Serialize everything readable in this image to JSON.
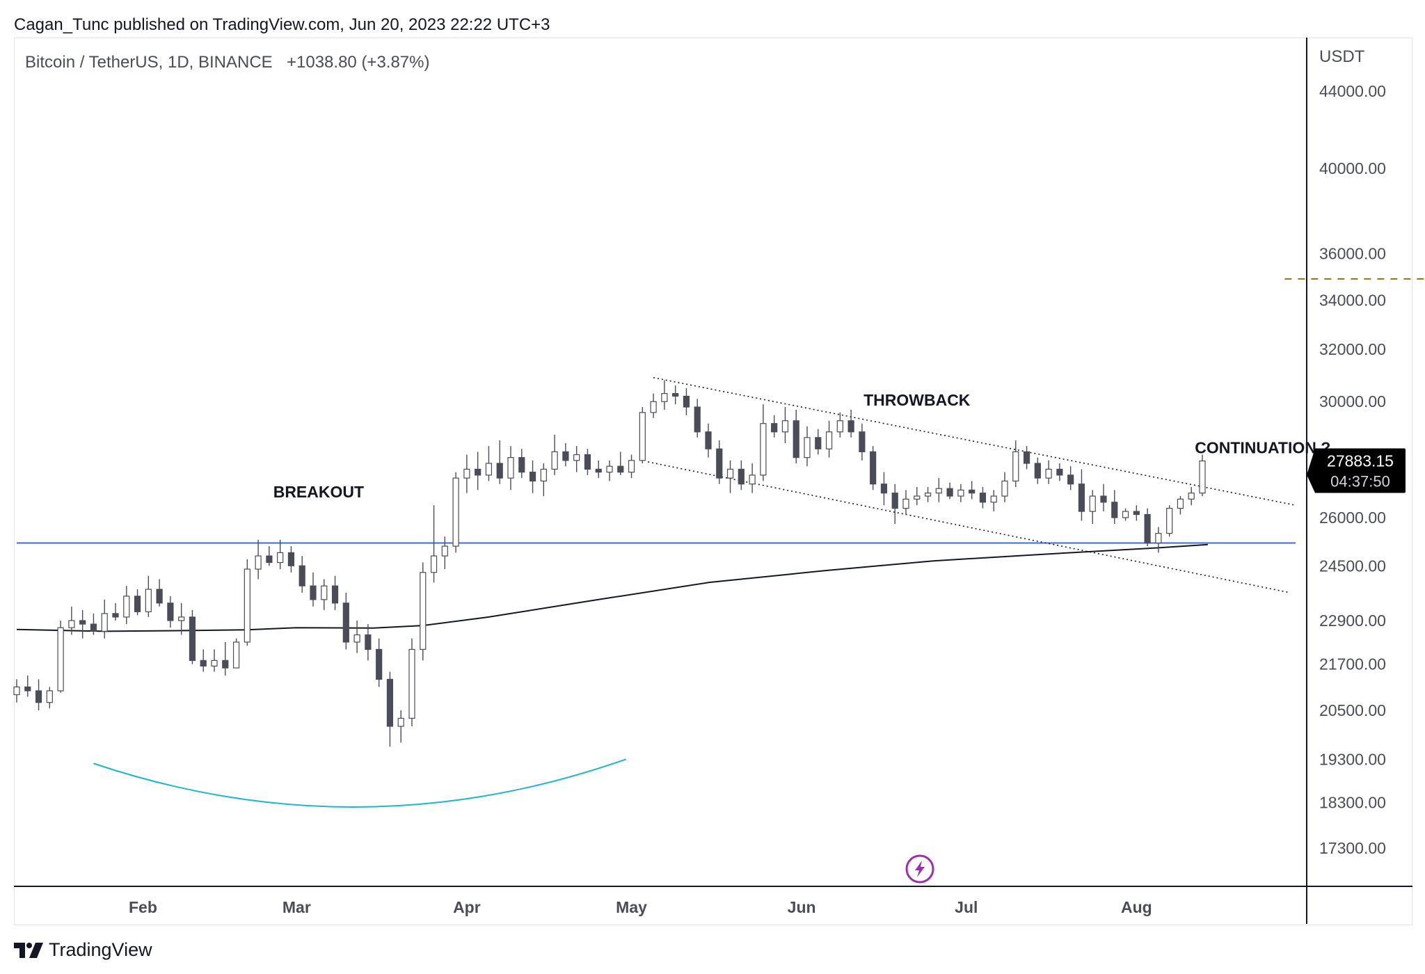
{
  "header": {
    "publish_note": "Cagan_Tunc published on TradingView.com, Jun 20, 2023 22:22 UTC+3"
  },
  "footer": {
    "brand": "TradingView"
  },
  "colors": {
    "candle_down": "#4a4c57",
    "candle_up": "#ffffff",
    "candle_outline": "#4a4c57",
    "support_line": "#3f6bd8",
    "moving_average": "#131722",
    "rounded_bottom_arc": "#1fb5c9",
    "target_dashed_line": "#7c7a1e",
    "price_tag_bg": "#000000",
    "price_tag_text": "#ffffff",
    "lightning_icon": "#9b2fae"
  },
  "chart_data": {
    "type": "candlestick",
    "symbol_line": "Bitcoin / TetherUS, 1D, BINANCE",
    "change": "+1038.80 (+3.87%)",
    "currency": "USDT",
    "scale": "log",
    "y_range": [
      16500,
      47000
    ],
    "y_ticks": [
      {
        "label": "44000.00",
        "value": 44000
      },
      {
        "label": "40000.00",
        "value": 40000
      },
      {
        "label": "36000.00",
        "value": 36000
      },
      {
        "label": "34000.00",
        "value": 34000
      },
      {
        "label": "32000.00",
        "value": 32000
      },
      {
        "label": "30000.00",
        "value": 30000
      },
      {
        "label": "26000.00",
        "value": 26000
      },
      {
        "label": "24500.00",
        "value": 24500
      },
      {
        "label": "22900.00",
        "value": 22900
      },
      {
        "label": "21700.00",
        "value": 21700
      },
      {
        "label": "20500.00",
        "value": 20500
      },
      {
        "label": "19300.00",
        "value": 19300
      },
      {
        "label": "18300.00",
        "value": 18300
      },
      {
        "label": "17300.00",
        "value": 17300
      }
    ],
    "x_range": [
      "2023-01-09",
      "2023-08-31"
    ],
    "x_ticks": [
      {
        "label": "Feb",
        "date": "2023-02-01"
      },
      {
        "label": "Mar",
        "date": "2023-03-01"
      },
      {
        "label": "Apr",
        "date": "2023-04-01"
      },
      {
        "label": "May",
        "date": "2023-05-01"
      },
      {
        "label": "Jun",
        "date": "2023-06-01"
      },
      {
        "label": "Jul",
        "date": "2023-07-01"
      },
      {
        "label": "Aug",
        "date": "2023-08-01"
      }
    ],
    "last_price": {
      "label": "27883.15",
      "countdown": "04:37:50",
      "value": 27883.15
    },
    "candles": [
      [
        "2023-01-09",
        20900,
        21300,
        20700,
        21100
      ],
      [
        "2023-01-11",
        21100,
        21400,
        20850,
        21000
      ],
      [
        "2023-01-13",
        21000,
        21300,
        20500,
        20700
      ],
      [
        "2023-01-15",
        20700,
        21100,
        20550,
        21000
      ],
      [
        "2023-01-17",
        21000,
        22900,
        20950,
        22700
      ],
      [
        "2023-01-19",
        22700,
        23300,
        22500,
        22900
      ],
      [
        "2023-01-21",
        22900,
        23200,
        22400,
        22800
      ],
      [
        "2023-01-23",
        22800,
        23100,
        22500,
        22600
      ],
      [
        "2023-01-25",
        22600,
        23500,
        22400,
        23100
      ],
      [
        "2023-01-27",
        23100,
        23400,
        22900,
        23000
      ],
      [
        "2023-01-29",
        23000,
        23900,
        22800,
        23600
      ],
      [
        "2023-01-31",
        23600,
        23800,
        23050,
        23150
      ],
      [
        "2023-02-02",
        23150,
        24200,
        23000,
        23800
      ],
      [
        "2023-02-04",
        23800,
        24100,
        23300,
        23400
      ],
      [
        "2023-02-06",
        23400,
        23600,
        22700,
        22900
      ],
      [
        "2023-02-08",
        22900,
        23400,
        22500,
        23000
      ],
      [
        "2023-02-10",
        23000,
        23200,
        21700,
        21800
      ],
      [
        "2023-02-12",
        21800,
        22100,
        21500,
        21650
      ],
      [
        "2023-02-14",
        21650,
        22100,
        21500,
        21800
      ],
      [
        "2023-02-16",
        21800,
        22300,
        21400,
        21600
      ],
      [
        "2023-02-18",
        21600,
        22400,
        21600,
        22300
      ],
      [
        "2023-02-20",
        22300,
        24700,
        22200,
        24400
      ],
      [
        "2023-02-22",
        24400,
        25300,
        24100,
        24800
      ],
      [
        "2023-02-24",
        24800,
        25100,
        24500,
        24600
      ],
      [
        "2023-02-26",
        24600,
        25300,
        24400,
        24900
      ],
      [
        "2023-02-28",
        24900,
        25100,
        24300,
        24500
      ],
      [
        "2023-03-02",
        24500,
        24800,
        23700,
        23900
      ],
      [
        "2023-03-04",
        23900,
        24300,
        23300,
        23500
      ],
      [
        "2023-03-06",
        23500,
        24100,
        23200,
        23900
      ],
      [
        "2023-03-08",
        23900,
        24200,
        23200,
        23400
      ],
      [
        "2023-03-10",
        23400,
        23700,
        22100,
        22300
      ],
      [
        "2023-03-12",
        22300,
        22900,
        22000,
        22500
      ],
      [
        "2023-03-14",
        22500,
        22800,
        21800,
        22100
      ],
      [
        "2023-03-16",
        22100,
        22400,
        21100,
        21300
      ],
      [
        "2023-03-18",
        21300,
        21500,
        19600,
        20100
      ],
      [
        "2023-03-20",
        20100,
        20500,
        19700,
        20300
      ],
      [
        "2023-03-22",
        20300,
        22400,
        20100,
        22100
      ],
      [
        "2023-03-24",
        22100,
        24600,
        21800,
        24300
      ],
      [
        "2023-03-26",
        24300,
        26400,
        24000,
        24800
      ],
      [
        "2023-03-28",
        24800,
        25400,
        24400,
        25100
      ],
      [
        "2023-03-30",
        25100,
        27500,
        24900,
        27300
      ],
      [
        "2023-04-01",
        27300,
        28100,
        26800,
        27600
      ],
      [
        "2023-04-03",
        27600,
        28200,
        26900,
        27400
      ],
      [
        "2023-04-05",
        27400,
        28400,
        27200,
        27800
      ],
      [
        "2023-04-07",
        27800,
        28600,
        27100,
        27300
      ],
      [
        "2023-04-09",
        27300,
        28400,
        26900,
        28000
      ],
      [
        "2023-04-11",
        28000,
        28300,
        27300,
        27500
      ],
      [
        "2023-04-13",
        27500,
        27900,
        26800,
        27200
      ],
      [
        "2023-04-15",
        27200,
        27800,
        26700,
        27600
      ],
      [
        "2023-04-17",
        27600,
        28800,
        27400,
        28200
      ],
      [
        "2023-04-19",
        28200,
        28500,
        27700,
        27900
      ],
      [
        "2023-04-21",
        27900,
        28400,
        27500,
        28100
      ],
      [
        "2023-04-23",
        28100,
        28300,
        27400,
        27600
      ],
      [
        "2023-04-25",
        27600,
        27900,
        27300,
        27500
      ],
      [
        "2023-04-27",
        27500,
        27900,
        27200,
        27700
      ],
      [
        "2023-04-29",
        27700,
        28200,
        27400,
        27500
      ],
      [
        "2023-05-01",
        27500,
        28100,
        27300,
        27900
      ],
      [
        "2023-05-03",
        27900,
        29800,
        27800,
        29600
      ],
      [
        "2023-05-05",
        29600,
        30300,
        29400,
        30000
      ],
      [
        "2023-05-07",
        30000,
        30800,
        29700,
        30300
      ],
      [
        "2023-05-09",
        30300,
        30600,
        29900,
        30200
      ],
      [
        "2023-05-11",
        30200,
        30500,
        29500,
        29800
      ],
      [
        "2023-05-13",
        29800,
        30100,
        28700,
        28900
      ],
      [
        "2023-05-15",
        28900,
        29200,
        28000,
        28300
      ],
      [
        "2023-05-17",
        28300,
        28600,
        27100,
        27300
      ],
      [
        "2023-05-19",
        27300,
        27900,
        26800,
        27600
      ],
      [
        "2023-05-21",
        27600,
        27900,
        26900,
        27100
      ],
      [
        "2023-05-23",
        27100,
        27800,
        26800,
        27400
      ],
      [
        "2023-05-25",
        27400,
        29900,
        27200,
        29200
      ],
      [
        "2023-05-27",
        29200,
        29500,
        28700,
        28900
      ],
      [
        "2023-05-29",
        28900,
        29800,
        28500,
        29300
      ],
      [
        "2023-05-31",
        29300,
        29700,
        27800,
        28000
      ],
      [
        "2023-06-02",
        28000,
        29100,
        27700,
        28700
      ],
      [
        "2023-06-04",
        28700,
        29000,
        28100,
        28300
      ],
      [
        "2023-06-06",
        28300,
        29300,
        28000,
        28900
      ],
      [
        "2023-06-08",
        28900,
        29600,
        28700,
        29300
      ],
      [
        "2023-06-10",
        29300,
        29700,
        28700,
        28900
      ],
      [
        "2023-06-12",
        28900,
        29200,
        27900,
        28200
      ],
      [
        "2023-06-14",
        28200,
        28400,
        26900,
        27100
      ],
      [
        "2023-06-16",
        27100,
        27500,
        26400,
        26800
      ],
      [
        "2023-06-18",
        26800,
        27100,
        25800,
        26300
      ],
      [
        "2023-06-20",
        26300,
        26900,
        26100,
        26600
      ],
      [
        "2023-06-22",
        26600,
        27000,
        26400,
        26700
      ],
      [
        "2023-06-24",
        26700,
        27000,
        26500,
        26800
      ],
      [
        "2023-06-26",
        26800,
        27300,
        26500,
        26950
      ],
      [
        "2023-06-28",
        26950,
        27150,
        26600,
        26700
      ],
      [
        "2023-06-30",
        26700,
        27100,
        26500,
        26900
      ],
      [
        "2023-07-02",
        26900,
        27200,
        26600,
        26800
      ],
      [
        "2023-07-04",
        26800,
        27000,
        26300,
        26500
      ],
      [
        "2023-07-06",
        26500,
        26900,
        26200,
        26700
      ],
      [
        "2023-07-08",
        26700,
        27500,
        26500,
        27200
      ],
      [
        "2023-07-10",
        27200,
        28600,
        27000,
        28200
      ],
      [
        "2023-07-12",
        28200,
        28400,
        27600,
        27800
      ],
      [
        "2023-07-14",
        27800,
        28000,
        27100,
        27300
      ],
      [
        "2023-07-16",
        27300,
        27900,
        27100,
        27600
      ],
      [
        "2023-07-18",
        27600,
        27800,
        27200,
        27400
      ],
      [
        "2023-07-20",
        27400,
        27700,
        26900,
        27100
      ],
      [
        "2023-07-22",
        27100,
        27600,
        25900,
        26200
      ],
      [
        "2023-07-24",
        26200,
        26900,
        25800,
        26700
      ],
      [
        "2023-07-26",
        26700,
        27100,
        26200,
        26500
      ],
      [
        "2023-07-28",
        26500,
        26900,
        25800,
        26000
      ],
      [
        "2023-07-30",
        26000,
        26300,
        25900,
        26200
      ],
      [
        "2023-08-01",
        26200,
        26400,
        25900,
        26100
      ],
      [
        "2023-08-03",
        26100,
        26300,
        25100,
        25200
      ],
      [
        "2023-08-05",
        25200,
        25700,
        24900,
        25500
      ],
      [
        "2023-08-07",
        25500,
        26400,
        25400,
        26300
      ],
      [
        "2023-08-09",
        26300,
        26700,
        26100,
        26600
      ],
      [
        "2023-08-11",
        26600,
        27000,
        26400,
        26800
      ],
      [
        "2023-08-13",
        26800,
        28100,
        26700,
        27883
      ]
    ],
    "moving_average": [
      [
        "2023-01-09",
        22650
      ],
      [
        "2023-01-25",
        22600
      ],
      [
        "2023-02-10",
        22620
      ],
      [
        "2023-02-20",
        22640
      ],
      [
        "2023-03-01",
        22700
      ],
      [
        "2023-03-15",
        22690
      ],
      [
        "2023-03-24",
        22760
      ],
      [
        "2023-04-05",
        23000
      ],
      [
        "2023-04-25",
        23500
      ],
      [
        "2023-05-15",
        24000
      ],
      [
        "2023-06-05",
        24350
      ],
      [
        "2023-06-25",
        24650
      ],
      [
        "2023-07-15",
        24850
      ],
      [
        "2023-08-05",
        25050
      ],
      [
        "2023-08-14",
        25150
      ]
    ],
    "annotations": [
      {
        "text": "BREAKOUT",
        "date": "2023-03-05",
        "price": 26650
      },
      {
        "text": "THROWBACK",
        "date": "2023-06-22",
        "price": 29850
      },
      {
        "text": "CONTINUATION ?",
        "date": "2023-08-24",
        "price": 28150
      }
    ],
    "support_line": {
      "price": 25200,
      "from": "2023-01-09",
      "to": "2023-08-30"
    },
    "channel_upper": [
      [
        "2023-05-05",
        30900
      ],
      [
        "2023-08-30",
        26400
      ]
    ],
    "channel_lower": [
      [
        "2023-05-04",
        27850
      ],
      [
        "2023-08-29",
        23700
      ]
    ],
    "target_line": {
      "price": 34900,
      "from": "2023-08-28",
      "to": "2023-10-05"
    },
    "rounded_bottom": {
      "from": "2023-01-23",
      "to": "2023-04-30"
    }
  }
}
